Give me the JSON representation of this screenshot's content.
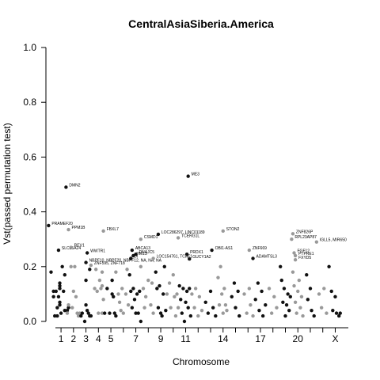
{
  "chart_data": {
    "type": "scatter",
    "title": "CentralAsiaSiberia.America",
    "xlabel": "Chromosome",
    "ylabel": "Vst(passed permutation test)",
    "ylim": [
      0,
      1.0
    ],
    "yticks": [
      "0.0",
      "0.2",
      "0.4",
      "0.6",
      "0.8",
      "1.0"
    ],
    "xtick_labels": [
      "1",
      "2",
      "3",
      "4",
      "5",
      "7",
      "9",
      "11",
      "14",
      "17",
      "20",
      "X"
    ],
    "grid": false,
    "legend": "none",
    "colors": {
      "odd": "#111111",
      "even": "#999999"
    },
    "chromosomes": [
      {
        "name": "1",
        "pos": 1
      },
      {
        "name": "2",
        "pos": 2
      },
      {
        "name": "3",
        "pos": 3
      },
      {
        "name": "4",
        "pos": 4
      },
      {
        "name": "5",
        "pos": 5
      },
      {
        "name": "6",
        "pos": 6
      },
      {
        "name": "7",
        "pos": 7
      },
      {
        "name": "8",
        "pos": 8
      },
      {
        "name": "9",
        "pos": 9
      },
      {
        "name": "10",
        "pos": 10
      },
      {
        "name": "11",
        "pos": 11
      },
      {
        "name": "12",
        "pos": 12
      },
      {
        "name": "13",
        "pos": 13
      },
      {
        "name": "14",
        "pos": 14
      },
      {
        "name": "15",
        "pos": 15
      },
      {
        "name": "16",
        "pos": 16
      },
      {
        "name": "17",
        "pos": 17
      },
      {
        "name": "18",
        "pos": 18
      },
      {
        "name": "19",
        "pos": 19
      },
      {
        "name": "20",
        "pos": 20
      },
      {
        "name": "21",
        "pos": 21
      },
      {
        "name": "22",
        "pos": 22
      },
      {
        "name": "X",
        "pos": 23
      }
    ],
    "chrom_span": [
      0.55,
      24.05
    ],
    "points": [
      {
        "chr": "1",
        "x": -0.8,
        "y": 0.18
      },
      {
        "chr": "1",
        "x": -0.6,
        "y": 0.11
      },
      {
        "chr": "1",
        "x": -0.6,
        "y": 0.09
      },
      {
        "chr": "1",
        "x": -0.5,
        "y": 0.02
      },
      {
        "chr": "1",
        "x": -0.4,
        "y": 0.11
      },
      {
        "chr": "1",
        "x": -0.3,
        "y": 0.05
      },
      {
        "chr": "1",
        "x": -0.3,
        "y": 0.02
      },
      {
        "chr": "1",
        "x": -0.2,
        "y": 0.09
      },
      {
        "chr": "1",
        "x": -0.1,
        "y": 0.14
      },
      {
        "chr": "1",
        "x": -0.1,
        "y": 0.13
      },
      {
        "chr": "1",
        "x": -0.1,
        "y": 0.12
      },
      {
        "chr": "1",
        "x": -0.1,
        "y": 0.07
      },
      {
        "chr": "1",
        "x": -0.1,
        "y": 0.06
      },
      {
        "chr": "1",
        "x": 0.0,
        "y": 0.03
      },
      {
        "chr": "1",
        "x": 0.1,
        "y": 0.2
      },
      {
        "chr": "1",
        "x": 0.2,
        "y": 0.11
      },
      {
        "chr": "1",
        "x": 0.3,
        "y": 0.17
      },
      {
        "chr": "1",
        "x": 0.3,
        "y": 0.04
      },
      {
        "chr": "1",
        "x": 0.5,
        "y": 0.04
      },
      {
        "chr": "1",
        "x": 0.6,
        "y": 0.05
      },
      {
        "chr": "2",
        "x": -0.5,
        "y": 0.03
      },
      {
        "chr": "2",
        "x": -0.4,
        "y": 0.06
      },
      {
        "chr": "2",
        "x": -0.2,
        "y": 0.2
      },
      {
        "chr": "2",
        "x": -0.1,
        "y": 0.05
      },
      {
        "chr": "2",
        "x": 0.0,
        "y": 0.11
      },
      {
        "chr": "2",
        "x": 0.1,
        "y": 0.2
      },
      {
        "chr": "2",
        "x": 0.2,
        "y": 0.09
      },
      {
        "chr": "2",
        "x": 0.3,
        "y": 0.03
      },
      {
        "chr": "2",
        "x": 0.4,
        "y": 0.02
      },
      {
        "chr": "2",
        "x": 0.5,
        "y": 0.03
      },
      {
        "chr": "3",
        "x": -0.4,
        "y": 0.02
      },
      {
        "chr": "3",
        "x": -0.3,
        "y": 0.03
      },
      {
        "chr": "3",
        "x": -0.1,
        "y": 0.0
      },
      {
        "chr": "3",
        "x": 0.0,
        "y": 0.15
      },
      {
        "chr": "3",
        "x": 0.0,
        "y": 0.06
      },
      {
        "chr": "3",
        "x": 0.1,
        "y": 0.04
      },
      {
        "chr": "3",
        "x": 0.2,
        "y": 0.03
      },
      {
        "chr": "3",
        "x": 0.3,
        "y": 0.19
      },
      {
        "chr": "3",
        "x": 0.3,
        "y": 0.02
      },
      {
        "chr": "3",
        "x": 0.4,
        "y": 0.02
      },
      {
        "chr": "4",
        "x": -0.3,
        "y": 0.12
      },
      {
        "chr": "4",
        "x": -0.2,
        "y": 0.19
      },
      {
        "chr": "4",
        "x": -0.1,
        "y": 0.11
      },
      {
        "chr": "4",
        "x": 0.0,
        "y": 0.03
      },
      {
        "chr": "4",
        "x": 0.1,
        "y": 0.15
      },
      {
        "chr": "4",
        "x": 0.2,
        "y": 0.12
      },
      {
        "chr": "4",
        "x": 0.3,
        "y": 0.18
      },
      {
        "chr": "4",
        "x": 0.3,
        "y": 0.13
      },
      {
        "chr": "4",
        "x": 0.3,
        "y": 0.03
      },
      {
        "chr": "4",
        "x": 0.4,
        "y": 0.08
      },
      {
        "chr": "5",
        "x": -0.5,
        "y": 0.03
      },
      {
        "chr": "5",
        "x": -0.3,
        "y": 0.12
      },
      {
        "chr": "5",
        "x": -0.1,
        "y": 0.03
      },
      {
        "chr": "5",
        "x": 0.1,
        "y": 0.15
      },
      {
        "chr": "5",
        "x": 0.1,
        "y": 0.1
      },
      {
        "chr": "5",
        "x": 0.2,
        "y": 0.09
      },
      {
        "chr": "5",
        "x": 0.3,
        "y": 0.03
      },
      {
        "chr": "5",
        "x": 0.4,
        "y": 0.02
      },
      {
        "chr": "6",
        "x": -0.6,
        "y": 0.18
      },
      {
        "chr": "6",
        "x": -0.4,
        "y": 0.1
      },
      {
        "chr": "6",
        "x": -0.3,
        "y": 0.07
      },
      {
        "chr": "6",
        "x": -0.2,
        "y": 0.04
      },
      {
        "chr": "6",
        "x": -0.1,
        "y": 0.12
      },
      {
        "chr": "6",
        "x": 0.0,
        "y": 0.03
      },
      {
        "chr": "6",
        "x": 0.2,
        "y": 0.1
      },
      {
        "chr": "6",
        "x": 0.3,
        "y": 0.19
      },
      {
        "chr": "6",
        "x": 0.4,
        "y": 0.06
      },
      {
        "chr": "7",
        "x": -0.5,
        "y": 0.17
      },
      {
        "chr": "7",
        "x": -0.4,
        "y": 0.11
      },
      {
        "chr": "7",
        "x": -0.3,
        "y": 0.05
      },
      {
        "chr": "7",
        "x": -0.2,
        "y": 0.12
      },
      {
        "chr": "7",
        "x": -0.1,
        "y": 0.08
      },
      {
        "chr": "7",
        "x": 0.0,
        "y": 0.03
      },
      {
        "chr": "7",
        "x": 0.1,
        "y": 0.1
      },
      {
        "chr": "7",
        "x": 0.2,
        "y": 0.03
      },
      {
        "chr": "7",
        "x": 0.3,
        "y": 0.11
      },
      {
        "chr": "7",
        "x": 0.4,
        "y": 0.0
      },
      {
        "chr": "8",
        "x": -0.6,
        "y": 0.2
      },
      {
        "chr": "8",
        "x": -0.4,
        "y": 0.12
      },
      {
        "chr": "8",
        "x": -0.3,
        "y": 0.05
      },
      {
        "chr": "8",
        "x": -0.2,
        "y": 0.09
      },
      {
        "chr": "8",
        "x": 0.0,
        "y": 0.15
      },
      {
        "chr": "8",
        "x": 0.2,
        "y": 0.06
      },
      {
        "chr": "8",
        "x": 0.3,
        "y": 0.14
      },
      {
        "chr": "8",
        "x": 0.4,
        "y": 0.03
      },
      {
        "chr": "9",
        "x": -0.4,
        "y": 0.18
      },
      {
        "chr": "9",
        "x": -0.3,
        "y": 0.12
      },
      {
        "chr": "9",
        "x": -0.2,
        "y": 0.05
      },
      {
        "chr": "9",
        "x": -0.1,
        "y": 0.13
      },
      {
        "chr": "9",
        "x": 0.0,
        "y": 0.03
      },
      {
        "chr": "9",
        "x": 0.1,
        "y": 0.02
      },
      {
        "chr": "9",
        "x": 0.2,
        "y": 0.1
      },
      {
        "chr": "9",
        "x": 0.3,
        "y": 0.2
      },
      {
        "chr": "9",
        "x": 0.4,
        "y": 0.04
      },
      {
        "chr": "10",
        "x": -0.5,
        "y": 0.1
      },
      {
        "chr": "10",
        "x": -0.3,
        "y": 0.14
      },
      {
        "chr": "10",
        "x": -0.2,
        "y": 0.05
      },
      {
        "chr": "10",
        "x": 0.0,
        "y": 0.17
      },
      {
        "chr": "10",
        "x": 0.1,
        "y": 0.09
      },
      {
        "chr": "10",
        "x": 0.2,
        "y": 0.02
      },
      {
        "chr": "10",
        "x": 0.3,
        "y": 0.1
      },
      {
        "chr": "10",
        "x": 0.4,
        "y": 0.05
      },
      {
        "chr": "11",
        "x": -0.5,
        "y": 0.13
      },
      {
        "chr": "11",
        "x": -0.4,
        "y": 0.08
      },
      {
        "chr": "11",
        "x": -0.3,
        "y": 0.03
      },
      {
        "chr": "11",
        "x": -0.2,
        "y": 0.12
      },
      {
        "chr": "11",
        "x": -0.1,
        "y": 0.0
      },
      {
        "chr": "11",
        "x": 0.0,
        "y": 0.07
      },
      {
        "chr": "11",
        "x": 0.1,
        "y": 0.11
      },
      {
        "chr": "11",
        "x": 0.2,
        "y": 0.05
      },
      {
        "chr": "11",
        "x": 0.3,
        "y": 0.12
      },
      {
        "chr": "11",
        "x": 0.4,
        "y": 0.02
      },
      {
        "chr": "12",
        "x": -0.5,
        "y": 0.1
      },
      {
        "chr": "12",
        "x": -0.3,
        "y": 0.05
      },
      {
        "chr": "12",
        "x": -0.2,
        "y": 0.12
      },
      {
        "chr": "12",
        "x": 0.0,
        "y": 0.02
      },
      {
        "chr": "12",
        "x": 0.1,
        "y": 0.09
      },
      {
        "chr": "12",
        "x": 0.3,
        "y": 0.04
      },
      {
        "chr": "13",
        "x": -0.4,
        "y": 0.07
      },
      {
        "chr": "13",
        "x": -0.2,
        "y": 0.03
      },
      {
        "chr": "13",
        "x": 0.0,
        "y": 0.11
      },
      {
        "chr": "13",
        "x": 0.2,
        "y": 0.05
      },
      {
        "chr": "13",
        "x": 0.4,
        "y": 0.02
      },
      {
        "chr": "14",
        "x": -0.4,
        "y": 0.16
      },
      {
        "chr": "14",
        "x": -0.3,
        "y": 0.06
      },
      {
        "chr": "14",
        "x": -0.2,
        "y": 0.2
      },
      {
        "chr": "14",
        "x": -0.1,
        "y": 0.1
      },
      {
        "chr": "14",
        "x": 0.0,
        "y": 0.03
      },
      {
        "chr": "14",
        "x": 0.1,
        "y": 0.12
      },
      {
        "chr": "14",
        "x": 0.2,
        "y": 0.06
      },
      {
        "chr": "14",
        "x": 0.3,
        "y": 0.04
      },
      {
        "chr": "15",
        "x": -0.3,
        "y": 0.09
      },
      {
        "chr": "15",
        "x": -0.1,
        "y": 0.14
      },
      {
        "chr": "15",
        "x": 0.0,
        "y": 0.05
      },
      {
        "chr": "15",
        "x": 0.2,
        "y": 0.11
      },
      {
        "chr": "15",
        "x": 0.3,
        "y": 0.02
      },
      {
        "chr": "16",
        "x": -0.3,
        "y": 0.1
      },
      {
        "chr": "16",
        "x": -0.1,
        "y": 0.03
      },
      {
        "chr": "16",
        "x": 0.1,
        "y": 0.12
      },
      {
        "chr": "16",
        "x": 0.2,
        "y": 0.06
      },
      {
        "chr": "16",
        "x": 0.4,
        "y": 0.02
      },
      {
        "chr": "17",
        "x": -0.4,
        "y": 0.08
      },
      {
        "chr": "17",
        "x": -0.2,
        "y": 0.14
      },
      {
        "chr": "17",
        "x": -0.1,
        "y": 0.04
      },
      {
        "chr": "17",
        "x": 0.1,
        "y": 0.11
      },
      {
        "chr": "17",
        "x": 0.2,
        "y": 0.02
      },
      {
        "chr": "17",
        "x": 0.4,
        "y": 0.06
      },
      {
        "chr": "18",
        "x": -0.3,
        "y": 0.12
      },
      {
        "chr": "18",
        "x": -0.1,
        "y": 0.03
      },
      {
        "chr": "18",
        "x": 0.1,
        "y": 0.09
      },
      {
        "chr": "18",
        "x": 0.3,
        "y": 0.05
      },
      {
        "chr": "19",
        "x": -0.4,
        "y": 0.2
      },
      {
        "chr": "19",
        "x": -0.3,
        "y": 0.15
      },
      {
        "chr": "19",
        "x": -0.2,
        "y": 0.07
      },
      {
        "chr": "19",
        "x": -0.1,
        "y": 0.12
      },
      {
        "chr": "19",
        "x": 0.0,
        "y": 0.02
      },
      {
        "chr": "19",
        "x": 0.1,
        "y": 0.06
      },
      {
        "chr": "19",
        "x": 0.2,
        "y": 0.1
      },
      {
        "chr": "19",
        "x": 0.3,
        "y": 0.04
      },
      {
        "chr": "19",
        "x": 0.4,
        "y": 0.09
      },
      {
        "chr": "20",
        "x": -0.4,
        "y": 0.18
      },
      {
        "chr": "20",
        "x": -0.3,
        "y": 0.13
      },
      {
        "chr": "20",
        "x": -0.2,
        "y": 0.07
      },
      {
        "chr": "20",
        "x": -0.1,
        "y": 0.03
      },
      {
        "chr": "20",
        "x": 0.0,
        "y": 0.11
      },
      {
        "chr": "20",
        "x": 0.1,
        "y": 0.15
      },
      {
        "chr": "20",
        "x": 0.2,
        "y": 0.05
      },
      {
        "chr": "20",
        "x": 0.3,
        "y": 0.09
      },
      {
        "chr": "20",
        "x": 0.4,
        "y": 0.02
      },
      {
        "chr": "21",
        "x": -0.3,
        "y": 0.17
      },
      {
        "chr": "21",
        "x": -0.2,
        "y": 0.08
      },
      {
        "chr": "21",
        "x": 0.0,
        "y": 0.12
      },
      {
        "chr": "21",
        "x": 0.1,
        "y": 0.04
      },
      {
        "chr": "21",
        "x": 0.3,
        "y": 0.02
      },
      {
        "chr": "22",
        "x": -0.3,
        "y": 0.1
      },
      {
        "chr": "22",
        "x": -0.1,
        "y": 0.05
      },
      {
        "chr": "22",
        "x": 0.1,
        "y": 0.12
      },
      {
        "chr": "22",
        "x": 0.3,
        "y": 0.03
      },
      {
        "chr": "X",
        "x": -0.5,
        "y": 0.2
      },
      {
        "chr": "X",
        "x": -0.3,
        "y": 0.11
      },
      {
        "chr": "X",
        "x": -0.2,
        "y": 0.04
      },
      {
        "chr": "X",
        "x": 0.0,
        "y": 0.09
      },
      {
        "chr": "X",
        "x": 0.1,
        "y": 0.03
      },
      {
        "chr": "X",
        "x": 0.3,
        "y": 0.02
      },
      {
        "chr": "X",
        "x": 0.4,
        "y": 0.03
      }
    ],
    "annotations": [
      {
        "label": "PRAMEF20",
        "chr": "1",
        "x": -1.0,
        "y": 0.35
      },
      {
        "label": "SLC25A24",
        "chr": "1",
        "x": -0.2,
        "y": 0.26
      },
      {
        "label": "DMN2",
        "chr": "1",
        "x": 0.4,
        "y": 0.49
      },
      {
        "label": "PPM1B",
        "chr": "2",
        "x": -0.4,
        "y": 0.335
      },
      {
        "label": "REV1",
        "chr": "2",
        "x": -0.2,
        "y": 0.27
      },
      {
        "label": "NBPF10, NBPF20, NBPF12, NA, NA, NA",
        "chr": "3",
        "x": 0.0,
        "y": 0.215
      },
      {
        "label": "WWTR1",
        "chr": "3",
        "x": 0.1,
        "y": 0.25
      },
      {
        "label": "ZNF595, ZNF718",
        "chr": "4",
        "x": -0.6,
        "y": 0.205
      },
      {
        "label": "FBXL7",
        "chr": "4",
        "x": 0.4,
        "y": 0.33
      },
      {
        "label": "ABCA13",
        "chr": "7",
        "x": -0.3,
        "y": 0.26
      },
      {
        "label": "DNAJC5",
        "chr": "7",
        "x": 0.0,
        "y": 0.245
      },
      {
        "label": "HM13",
        "chr": "7",
        "x": -0.2,
        "y": 0.24
      },
      {
        "label": "DI",
        "chr": "7",
        "x": -0.4,
        "y": 0.23
      },
      {
        "label": "CSMD1",
        "chr": "8",
        "x": -0.6,
        "y": 0.3
      },
      {
        "label": "LOC154761, TCAF1",
        "chr": "8",
        "x": 0.4,
        "y": 0.23
      },
      {
        "label": "LOC286297, LINC01189",
        "chr": "9",
        "x": -0.2,
        "y": 0.318
      },
      {
        "label": "TCERG1L",
        "chr": "10",
        "x": 0.4,
        "y": 0.305
      },
      {
        "label": "ME3",
        "chr": "11",
        "x": 0.2,
        "y": 0.53
      },
      {
        "label": "PRDX1",
        "chr": "11",
        "x": 0.1,
        "y": 0.245
      },
      {
        "label": "GUCY1A2",
        "chr": "11",
        "x": 0.3,
        "y": 0.228
      },
      {
        "label": "OBI1-AS1",
        "chr": "13",
        "x": 0.1,
        "y": 0.26
      },
      {
        "label": "STON2",
        "chr": "14",
        "x": 0.0,
        "y": 0.33
      },
      {
        "label": "ZNF669",
        "chr": "16",
        "x": 0.1,
        "y": 0.26
      },
      {
        "label": "ADAMTSL3",
        "chr": "17",
        "x": -0.6,
        "y": 0.23
      },
      {
        "label": "ZNF826P",
        "chr": "20",
        "x": -0.4,
        "y": 0.32
      },
      {
        "label": "RPL23AP87",
        "chr": "20",
        "x": -0.5,
        "y": 0.3
      },
      {
        "label": "IGLL5, MIR650",
        "chr": "22",
        "x": -0.5,
        "y": 0.29
      },
      {
        "label": "FGF12",
        "chr": "20",
        "x": -0.3,
        "y": 0.25
      },
      {
        "label": "PTPRE1",
        "chr": "20",
        "x": -0.2,
        "y": 0.24
      },
      {
        "label": "FXYD5",
        "chr": "20",
        "x": -0.2,
        "y": 0.225
      }
    ]
  }
}
